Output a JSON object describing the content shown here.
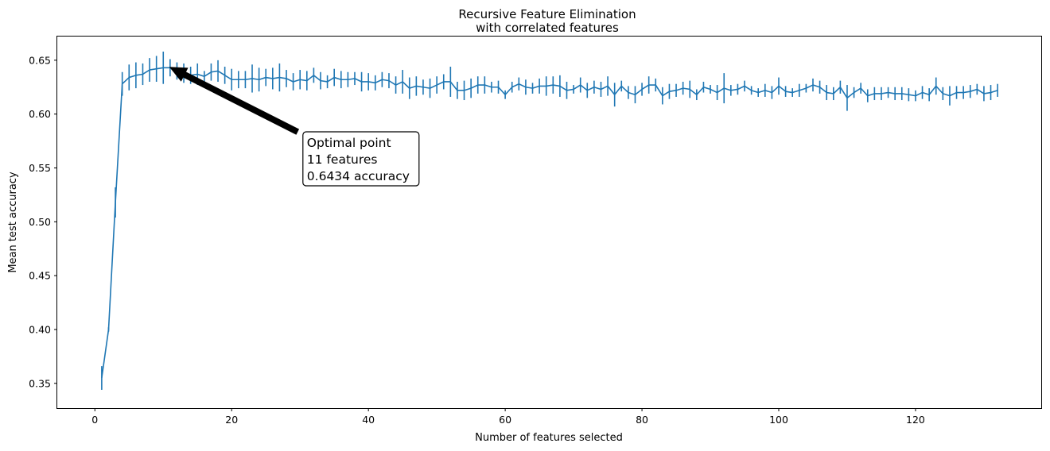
{
  "chart_data": {
    "type": "line",
    "title": [
      "Recursive Feature Elimination",
      "with correlated features"
    ],
    "xlabel": "Number of features selected",
    "ylabel": "Mean test accuracy",
    "xlim": [
      -5.5,
      138.5
    ],
    "ylim": [
      0.327,
      0.672
    ],
    "xticks": [
      0,
      20,
      40,
      60,
      80,
      100,
      120
    ],
    "yticks": [
      0.35,
      0.4,
      0.45,
      0.5,
      0.55,
      0.6,
      0.65
    ],
    "ytick_labels": [
      "0.35",
      "0.40",
      "0.45",
      "0.50",
      "0.55",
      "0.60",
      "0.65"
    ],
    "grid": false,
    "color": "#1f77b4",
    "series": [
      {
        "x_start": 1,
        "x_step": 1,
        "mean": [
          0.355,
          0.4,
          0.518,
          0.628,
          0.634,
          0.636,
          0.637,
          0.641,
          0.642,
          0.643,
          0.643,
          0.64,
          0.638,
          0.636,
          0.637,
          0.635,
          0.639,
          0.64,
          0.636,
          0.632,
          0.632,
          0.632,
          0.633,
          0.632,
          0.634,
          0.633,
          0.634,
          0.633,
          0.63,
          0.632,
          0.631,
          0.636,
          0.631,
          0.63,
          0.634,
          0.632,
          0.632,
          0.633,
          0.63,
          0.63,
          0.629,
          0.632,
          0.631,
          0.627,
          0.63,
          0.624,
          0.626,
          0.625,
          0.624,
          0.627,
          0.63,
          0.63,
          0.622,
          0.622,
          0.624,
          0.627,
          0.627,
          0.625,
          0.625,
          0.618,
          0.625,
          0.628,
          0.625,
          0.624,
          0.626,
          0.626,
          0.627,
          0.626,
          0.622,
          0.623,
          0.627,
          0.622,
          0.625,
          0.623,
          0.626,
          0.618,
          0.626,
          0.62,
          0.618,
          0.623,
          0.627,
          0.627,
          0.617,
          0.621,
          0.622,
          0.624,
          0.623,
          0.618,
          0.625,
          0.623,
          0.62,
          0.624,
          0.622,
          0.623,
          0.626,
          0.622,
          0.62,
          0.622,
          0.62,
          0.626,
          0.621,
          0.62,
          0.622,
          0.624,
          0.627,
          0.625,
          0.62,
          0.619,
          0.625,
          0.615,
          0.62,
          0.624,
          0.617,
          0.619,
          0.619,
          0.62,
          0.619,
          0.619,
          0.618,
          0.617,
          0.62,
          0.618,
          0.626,
          0.619,
          0.617,
          0.62,
          0.62,
          0.621,
          0.623,
          0.619,
          0.62,
          0.622
        ],
        "error": [
          0.011,
          0.002,
          0.014,
          0.011,
          0.012,
          0.012,
          0.01,
          0.011,
          0.012,
          0.015,
          0.008,
          0.008,
          0.009,
          0.008,
          0.01,
          0.005,
          0.008,
          0.01,
          0.008,
          0.01,
          0.008,
          0.008,
          0.013,
          0.011,
          0.008,
          0.01,
          0.013,
          0.008,
          0.008,
          0.009,
          0.009,
          0.007,
          0.008,
          0.006,
          0.008,
          0.008,
          0.007,
          0.006,
          0.009,
          0.008,
          0.007,
          0.007,
          0.007,
          0.008,
          0.011,
          0.01,
          0.009,
          0.007,
          0.009,
          0.008,
          0.007,
          0.014,
          0.008,
          0.009,
          0.009,
          0.008,
          0.008,
          0.005,
          0.006,
          0.004,
          0.005,
          0.006,
          0.007,
          0.005,
          0.007,
          0.009,
          0.008,
          0.01,
          0.008,
          0.004,
          0.007,
          0.007,
          0.006,
          0.007,
          0.009,
          0.011,
          0.005,
          0.006,
          0.008,
          0.006,
          0.008,
          0.006,
          0.008,
          0.007,
          0.006,
          0.006,
          0.008,
          0.005,
          0.005,
          0.004,
          0.007,
          0.014,
          0.005,
          0.005,
          0.005,
          0.004,
          0.004,
          0.006,
          0.006,
          0.008,
          0.005,
          0.004,
          0.006,
          0.004,
          0.006,
          0.006,
          0.007,
          0.006,
          0.006,
          0.012,
          0.005,
          0.005,
          0.006,
          0.006,
          0.006,
          0.005,
          0.006,
          0.006,
          0.006,
          0.005,
          0.006,
          0.006,
          0.008,
          0.006,
          0.009,
          0.006,
          0.006,
          0.006,
          0.005,
          0.007,
          0.007,
          0.006
        ]
      }
    ],
    "annotation": {
      "lines": [
        "Optimal point",
        "11 features",
        "0.6434 accuracy"
      ],
      "point": [
        11,
        0.6434
      ],
      "text_at": [
        31,
        0.588
      ]
    }
  }
}
